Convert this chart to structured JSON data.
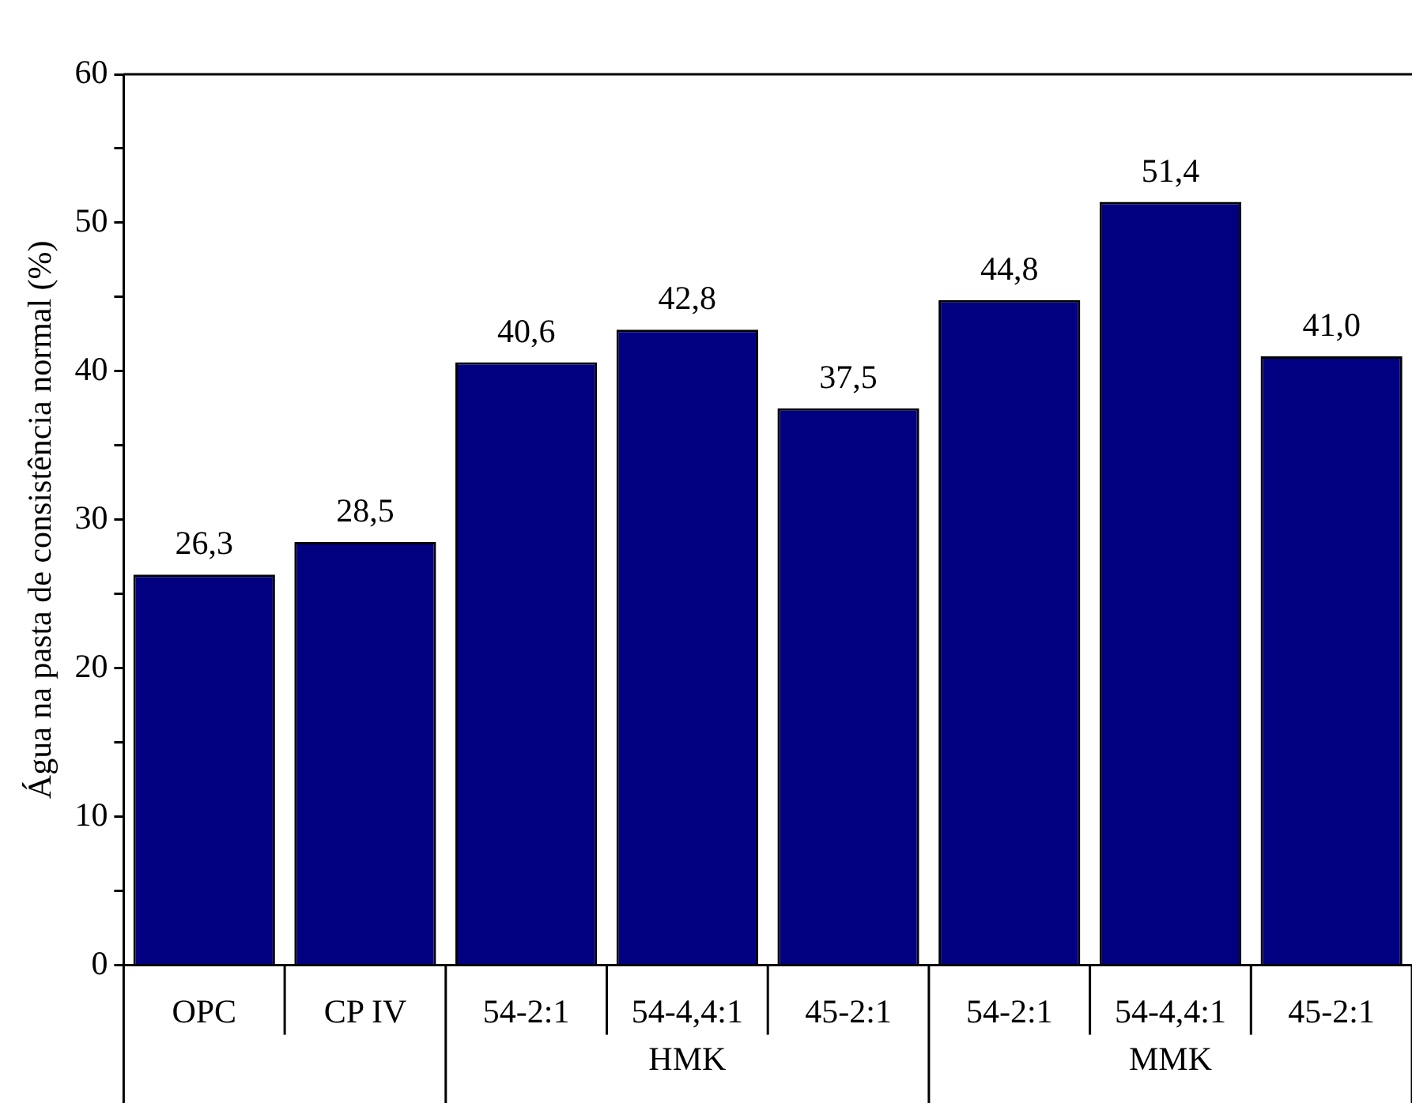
{
  "chart_data": {
    "type": "bar",
    "ylabel": "Água na pasta de consistência normal (%)",
    "categories": [
      "OPC",
      "CP IV",
      "54-2:1",
      "54-4,4:1",
      "45-2:1",
      "54-2:1",
      "54-4,4:1",
      "45-2:1"
    ],
    "values": [
      26.3,
      28.5,
      40.6,
      42.8,
      37.5,
      44.8,
      51.4,
      41.0
    ],
    "value_labels": [
      "26,3",
      "28,5",
      "40,6",
      "42,8",
      "37,5",
      "44,8",
      "51,4",
      "41,0"
    ],
    "color": "#000080",
    "ylim": [
      0,
      60
    ],
    "yticks": [
      0,
      {
        "value": 5,
        "label": null
      },
      10,
      {
        "value": 15,
        "label": null
      },
      20,
      {
        "value": 25,
        "label": null
      },
      30,
      {
        "value": 35,
        "label": null
      },
      40,
      {
        "value": 45,
        "label": null
      },
      50,
      {
        "value": 55,
        "label": null
      },
      60
    ],
    "annotations": [
      "HMK",
      "MMK"
    ],
    "legend": false
  }
}
